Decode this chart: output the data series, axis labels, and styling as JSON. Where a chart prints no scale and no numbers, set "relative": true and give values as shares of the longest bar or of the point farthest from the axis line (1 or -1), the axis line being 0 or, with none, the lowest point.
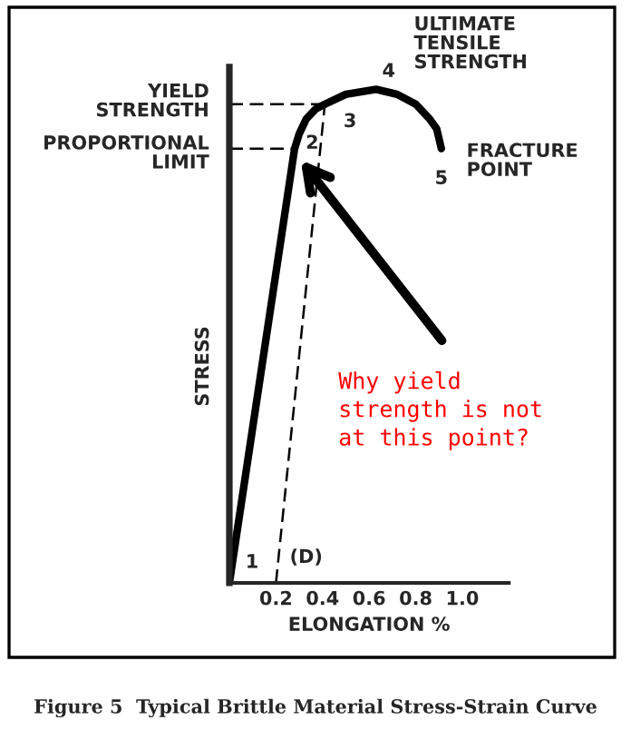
{
  "chart_data": {
    "type": "line",
    "relative": true,
    "tick_labels": "x",
    "xlabel": "ELONGATION %",
    "ylabel": "STRESS",
    "xlim": [
      0,
      1.2
    ],
    "xticks": [
      0.2,
      0.4,
      0.6,
      0.8,
      {
        "value": 1.0,
        "label": "1.0"
      }
    ],
    "series": [
      {
        "color": "#000000",
        "line_style": "solid",
        "x": [
          0,
          0.28,
          0.3,
          0.33,
          0.37,
          0.41,
          0.5,
          0.63,
          0.72,
          0.8,
          0.86,
          0.89,
          0.91
        ],
        "values": [
          0,
          0.88,
          0.91,
          0.94,
          0.96,
          0.97,
          0.99,
          1.0,
          0.99,
          0.97,
          0.94,
          0.92,
          0.88
        ]
      },
      {
        "color": "#000000",
        "line_style": "dashed",
        "x": [
          0,
          0.41
        ],
        "values": [
          0.97,
          0.97
        ]
      },
      {
        "color": "#000000",
        "line_style": "dashed",
        "x": [
          0,
          0.28
        ],
        "values": [
          0.88,
          0.88
        ]
      },
      {
        "color": "#000000",
        "line_style": "dashed",
        "x": [
          0.2,
          0.41
        ],
        "values": [
          0,
          0.97
        ]
      }
    ],
    "annotations": [
      {
        "text": "1",
        "x": 0,
        "y": 0
      },
      {
        "text": "(D)",
        "x": 0.2,
        "y": 0
      },
      {
        "text": "2",
        "x": 0.28,
        "y": 0.88
      },
      {
        "text": "3",
        "x": 0.41,
        "y": 0.97
      },
      {
        "text": "4",
        "x": 0.63,
        "y": 1.0
      },
      {
        "text": "5",
        "x": 0.91,
        "y": 0.88
      },
      {
        "text": "ULTIMATE\nTENSILE\nSTRENGTH",
        "x": 0.63,
        "y": 1.0
      },
      {
        "text": "FRACTURE\nPOINT",
        "x": 0.91,
        "y": 0.88
      },
      {
        "text": "YIELD\nSTRENGTH",
        "x": 0,
        "y": 0.97
      },
      {
        "text": "PROPORTIONAL\nLIMIT",
        "x": 0,
        "y": 0.88
      },
      "Why yield\nstrength is not\nat this point?",
      "Figure 5  Typical Brittle Material Stress-Strain Curve"
    ]
  }
}
